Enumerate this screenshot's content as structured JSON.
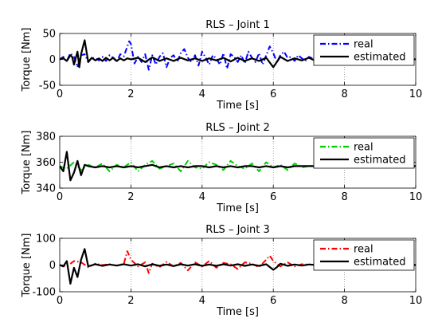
{
  "chart_data": [
    {
      "type": "line",
      "title": "RLS – Joint 1",
      "xlabel": "Time [s]",
      "ylabel": "Torque [Nm]",
      "xlim": [
        0,
        10
      ],
      "ylim": [
        -50,
        50
      ],
      "xticks": [
        0,
        2,
        4,
        6,
        8,
        10
      ],
      "yticks": [
        -50,
        0,
        50
      ],
      "grid": "x-dotted",
      "legend": "top-right",
      "series": [
        {
          "name": "real",
          "color": "#0000ff",
          "style": "dashdot",
          "x": [
            0,
            0.1,
            0.2,
            0.3,
            0.4,
            0.5,
            0.6,
            0.7,
            0.8,
            0.9,
            1.0,
            1.1,
            1.2,
            1.3,
            1.4,
            1.5,
            1.6,
            1.7,
            1.8,
            1.9,
            1.95,
            2.0,
            2.1,
            2.2,
            2.3,
            2.4,
            2.5,
            2.6,
            2.7,
            2.8,
            2.9,
            3.0,
            3.1,
            3.2,
            3.3,
            3.4,
            3.5,
            3.6,
            3.7,
            3.8,
            3.9,
            4.0,
            4.1,
            4.2,
            4.3,
            4.4,
            4.5,
            4.6,
            4.7,
            4.8,
            4.9,
            5.0,
            5.1,
            5.2,
            5.3,
            5.4,
            5.5,
            5.6,
            5.7,
            5.8,
            5.9,
            6.0,
            6.1,
            6.2,
            6.3,
            6.4,
            6.5,
            6.6,
            6.7,
            6.8,
            6.9,
            7.0,
            7.1,
            7.2,
            7.3,
            7.4,
            7.5,
            7.6,
            7.7,
            7.8,
            7.9,
            8.0,
            8.2,
            8.4,
            8.6,
            8.8,
            9.0,
            9.2,
            9.4,
            9.6,
            9.8,
            10.0
          ],
          "y": [
            0,
            5,
            -3,
            12,
            5,
            -15,
            8,
            10,
            -5,
            3,
            2,
            -2,
            5,
            -3,
            8,
            3,
            -5,
            10,
            6,
            25,
            35,
            30,
            -8,
            5,
            -5,
            10,
            -20,
            8,
            -10,
            5,
            12,
            -15,
            3,
            8,
            -5,
            12,
            20,
            3,
            -5,
            8,
            -12,
            15,
            3,
            -10,
            8,
            2,
            -10,
            12,
            -18,
            10,
            5,
            -5,
            8,
            -8,
            15,
            3,
            -5,
            12,
            -10,
            8,
            25,
            12,
            -5,
            8,
            15,
            3,
            5,
            -3,
            8,
            2,
            -3,
            5,
            2,
            -2,
            3,
            0,
            2,
            -2,
            1,
            0,
            2,
            -1,
            1,
            0,
            1,
            -1,
            0,
            1,
            0,
            -1,
            1,
            0
          ]
        },
        {
          "name": "estimated",
          "color": "#000000",
          "style": "solid",
          "x": [
            0,
            0.1,
            0.2,
            0.3,
            0.35,
            0.4,
            0.5,
            0.55,
            0.6,
            0.7,
            0.8,
            0.9,
            1.0,
            1.1,
            1.2,
            1.3,
            1.4,
            1.5,
            1.6,
            1.7,
            1.8,
            1.9,
            2.0,
            2.2,
            2.4,
            2.6,
            2.8,
            3.0,
            3.2,
            3.4,
            3.6,
            3.8,
            4.0,
            4.2,
            4.4,
            4.6,
            4.8,
            5.0,
            5.2,
            5.4,
            5.6,
            5.8,
            6.0,
            6.1,
            6.2,
            6.4,
            6.6,
            6.8,
            7.0,
            7.2,
            7.4,
            7.6,
            7.8,
            8.0,
            8.2,
            8.4,
            8.6,
            8.8,
            9.0,
            9.2,
            9.4,
            9.6,
            9.8,
            10.0
          ],
          "y": [
            0,
            2,
            -3,
            8,
            5,
            -10,
            15,
            -15,
            10,
            37,
            -5,
            3,
            -2,
            2,
            -3,
            3,
            -2,
            3,
            -3,
            2,
            -2,
            2,
            0,
            3,
            -5,
            4,
            -3,
            2,
            -3,
            3,
            -2,
            2,
            -3,
            2,
            -2,
            3,
            -4,
            3,
            -3,
            2,
            -3,
            3,
            -15,
            -5,
            5,
            -3,
            2,
            -2,
            3,
            -3,
            2,
            -2,
            2,
            -2,
            2,
            -2,
            2,
            -1,
            2,
            -2,
            1,
            -1,
            1,
            0
          ]
        }
      ]
    },
    {
      "type": "line",
      "title": "RLS – Joint 2",
      "xlabel": "Time [s]",
      "ylabel": "Torque [Nm]",
      "xlim": [
        0,
        10
      ],
      "ylim": [
        340,
        380
      ],
      "xticks": [
        0,
        2,
        4,
        6,
        8,
        10
      ],
      "yticks": [
        340,
        360,
        380
      ],
      "grid": "x-dotted",
      "legend": "top-right",
      "series": [
        {
          "name": "real",
          "color": "#00cc00",
          "style": "dashdot",
          "x": [
            0,
            0.2,
            0.4,
            0.6,
            0.8,
            1.0,
            1.2,
            1.4,
            1.6,
            1.8,
            2.0,
            2.2,
            2.4,
            2.6,
            2.8,
            3.0,
            3.2,
            3.4,
            3.6,
            3.8,
            4.0,
            4.2,
            4.4,
            4.6,
            4.8,
            5.0,
            5.2,
            5.4,
            5.6,
            5.8,
            6.0,
            6.2,
            6.4,
            6.6,
            6.8,
            7.0,
            7.2,
            7.4,
            7.6,
            7.8,
            8.0,
            8.5,
            9.0,
            9.5,
            10.0
          ],
          "y": [
            357,
            355,
            360,
            354,
            358,
            356,
            359,
            353,
            358,
            356,
            360,
            353,
            358,
            361,
            355,
            357,
            359,
            353,
            361,
            356,
            355,
            360,
            358,
            354,
            361,
            357,
            355,
            359,
            353,
            360,
            356,
            358,
            354,
            359,
            356,
            357,
            358,
            356,
            357,
            356,
            357,
            356,
            357,
            356,
            357
          ]
        },
        {
          "name": "estimated",
          "color": "#000000",
          "style": "solid",
          "x": [
            0,
            0.1,
            0.2,
            0.3,
            0.4,
            0.5,
            0.6,
            0.7,
            0.8,
            1.0,
            1.2,
            1.4,
            1.6,
            1.8,
            2.0,
            2.2,
            2.4,
            2.6,
            2.8,
            3.0,
            3.2,
            3.4,
            3.6,
            3.8,
            4.0,
            4.2,
            4.4,
            4.6,
            4.8,
            5.0,
            5.2,
            5.4,
            5.6,
            5.8,
            6.0,
            6.2,
            6.4,
            6.6,
            6.8,
            7.0,
            7.5,
            8.0,
            8.5,
            9.0,
            9.5,
            10.0
          ],
          "y": [
            357,
            353,
            368,
            346,
            352,
            361,
            350,
            358,
            357,
            356,
            357,
            356,
            357,
            356,
            357,
            356,
            357,
            358,
            356,
            357,
            356,
            357,
            356,
            357,
            357,
            356,
            357,
            356,
            357,
            356,
            357,
            357,
            356,
            357,
            356,
            357,
            356,
            357,
            357,
            357,
            357,
            356,
            357,
            357,
            357,
            357
          ]
        }
      ]
    },
    {
      "type": "line",
      "title": "RLS – Joint 3",
      "xlabel": "Time [s]",
      "ylabel": "Torque [Nm]",
      "xlim": [
        0,
        10
      ],
      "ylim": [
        -100,
        100
      ],
      "xticks": [
        0,
        2,
        4,
        6,
        8,
        10
      ],
      "yticks": [
        -100,
        0,
        100
      ],
      "grid": "x-dotted",
      "legend": "top-right",
      "series": [
        {
          "name": "real",
          "color": "#ff0000",
          "style": "dashdot",
          "x": [
            0,
            0.2,
            0.4,
            0.6,
            0.8,
            1.0,
            1.2,
            1.4,
            1.6,
            1.8,
            1.9,
            2.0,
            2.2,
            2.4,
            2.5,
            2.6,
            2.8,
            3.0,
            3.2,
            3.4,
            3.6,
            3.8,
            4.0,
            4.2,
            4.4,
            4.6,
            4.8,
            5.0,
            5.2,
            5.4,
            5.6,
            5.8,
            5.9,
            6.0,
            6.2,
            6.4,
            6.6,
            6.8,
            7.0,
            7.5,
            8.0,
            8.5,
            9.0,
            9.5,
            10.0
          ],
          "y": [
            0,
            -5,
            15,
            10,
            -8,
            5,
            0,
            3,
            -2,
            5,
            52,
            20,
            -5,
            10,
            -30,
            5,
            -8,
            12,
            -5,
            8,
            -20,
            10,
            -5,
            15,
            -10,
            8,
            3,
            -15,
            10,
            5,
            -8,
            20,
            35,
            15,
            -5,
            10,
            -5,
            3,
            2,
            -2,
            2,
            -1,
            1,
            0,
            1
          ]
        },
        {
          "name": "estimated",
          "color": "#000000",
          "style": "solid",
          "x": [
            0,
            0.1,
            0.2,
            0.3,
            0.4,
            0.5,
            0.6,
            0.7,
            0.8,
            1.0,
            1.2,
            1.4,
            1.6,
            1.8,
            2.0,
            2.2,
            2.4,
            2.6,
            2.8,
            3.0,
            3.2,
            3.4,
            3.6,
            3.8,
            4.0,
            4.2,
            4.4,
            4.6,
            4.8,
            5.0,
            5.2,
            5.4,
            5.6,
            5.8,
            6.0,
            6.1,
            6.2,
            6.4,
            6.6,
            6.8,
            7.0,
            7.5,
            8.0,
            8.5,
            9.0,
            9.5,
            10.0
          ],
          "y": [
            0,
            -5,
            15,
            -70,
            -10,
            -45,
            20,
            60,
            -5,
            3,
            -3,
            2,
            -2,
            3,
            -2,
            3,
            -5,
            3,
            -3,
            2,
            -4,
            3,
            -2,
            3,
            -3,
            2,
            -3,
            3,
            -2,
            3,
            -3,
            2,
            -3,
            3,
            -18,
            -8,
            5,
            -3,
            2,
            -2,
            2,
            -2,
            1,
            -1,
            1,
            -1,
            0
          ]
        }
      ]
    }
  ]
}
